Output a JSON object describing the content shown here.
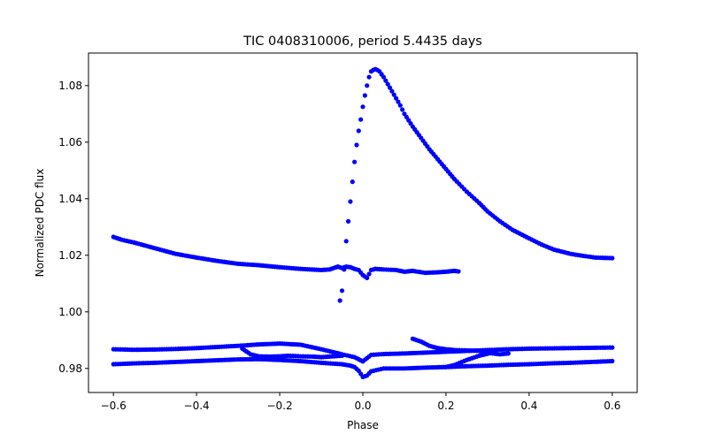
{
  "chart_data": {
    "type": "scatter",
    "title": "TIC 0408310006, period 5.4435 days",
    "xlabel": "Phase",
    "ylabel": "Normalized PDC flux",
    "xlim": [
      -0.66,
      0.66
    ],
    "ylim": [
      0.9715,
      1.0915
    ],
    "xticks": [
      -0.6,
      -0.4,
      -0.2,
      0.0,
      0.2,
      0.4,
      0.6
    ],
    "xtick_labels": [
      "−0.6",
      "−0.4",
      "−0.2",
      "0.0",
      "0.2",
      "0.4",
      "0.6"
    ],
    "yticks": [
      0.98,
      1.0,
      1.02,
      1.04,
      1.06,
      1.08
    ],
    "ytick_labels": [
      "0.98",
      "1.00",
      "1.02",
      "1.04",
      "1.06",
      "1.08"
    ],
    "grid": false,
    "marker_color": "#0000ff",
    "series": [
      {
        "x": [
          -0.6,
          -0.58,
          -0.55,
          -0.5,
          -0.45,
          -0.4,
          -0.35,
          -0.3,
          -0.25,
          -0.2,
          -0.15,
          -0.1,
          -0.08,
          -0.06,
          -0.05,
          -0.04,
          -0.03,
          -0.02,
          -0.01,
          0.0,
          0.01,
          0.02,
          0.03,
          0.05,
          0.08,
          0.1,
          0.12,
          0.15,
          0.18,
          0.2,
          0.22,
          0.23
        ],
        "y": [
          1.0265,
          1.0255,
          1.0245,
          1.0225,
          1.0205,
          1.0192,
          1.018,
          1.017,
          1.0165,
          1.0158,
          1.0152,
          1.0148,
          1.015,
          1.016,
          1.0155,
          1.016,
          1.0158,
          1.0152,
          1.0148,
          1.013,
          1.012,
          1.0148,
          1.0152,
          1.015,
          1.0148,
          1.0142,
          1.0145,
          1.0138,
          1.014,
          1.0142,
          1.0145,
          1.0143
        ]
      },
      {
        "x": [
          -0.055,
          -0.05,
          -0.045,
          -0.04,
          -0.035,
          -0.03,
          -0.025,
          -0.02,
          -0.015,
          -0.01,
          -0.005,
          0.0,
          0.005,
          0.01,
          0.015,
          0.02,
          0.025,
          0.03,
          0.035,
          0.04,
          0.05,
          0.06,
          0.07,
          0.08,
          0.09,
          0.1,
          0.12,
          0.14,
          0.16,
          0.18,
          0.2,
          0.22,
          0.25,
          0.28,
          0.3,
          0.33,
          0.36,
          0.4,
          0.43,
          0.46,
          0.5,
          0.53,
          0.56,
          0.6
        ],
        "y": [
          1.004,
          1.0075,
          1.015,
          1.025,
          1.032,
          1.039,
          1.046,
          1.053,
          1.059,
          1.064,
          1.068,
          1.0725,
          1.0765,
          1.08,
          1.083,
          1.085,
          1.0855,
          1.0858,
          1.0855,
          1.085,
          1.083,
          1.0805,
          1.078,
          1.0755,
          1.073,
          1.07,
          1.0655,
          1.0615,
          1.0575,
          1.054,
          1.0505,
          1.047,
          1.0425,
          1.0385,
          1.0355,
          1.032,
          1.029,
          1.026,
          1.0238,
          1.022,
          1.0205,
          1.0198,
          1.0192,
          1.019
        ]
      },
      {
        "x": [
          -0.6,
          -0.55,
          -0.5,
          -0.45,
          -0.4,
          -0.35,
          -0.3,
          -0.25,
          -0.2,
          -0.15,
          -0.1,
          -0.05,
          -0.03,
          -0.02,
          -0.01,
          0.0,
          0.01,
          0.02,
          0.05,
          0.1,
          0.15,
          0.2,
          0.25,
          0.3,
          0.35,
          0.4,
          0.45,
          0.5,
          0.55,
          0.6
        ],
        "y": [
          0.9815,
          0.9818,
          0.982,
          0.9823,
          0.9826,
          0.9829,
          0.9832,
          0.9833,
          0.983,
          0.9826,
          0.982,
          0.9815,
          0.981,
          0.9805,
          0.9792,
          0.977,
          0.9775,
          0.979,
          0.98,
          0.98,
          0.9803,
          0.9805,
          0.9808,
          0.981,
          0.9813,
          0.9815,
          0.9818,
          0.982,
          0.9823,
          0.9826
        ]
      },
      {
        "x": [
          -0.6,
          -0.55,
          -0.5,
          -0.45,
          -0.4,
          -0.35,
          -0.3,
          -0.25,
          -0.2,
          -0.15,
          -0.1,
          -0.05,
          -0.02,
          0.0,
          0.02,
          0.05,
          0.1,
          0.15,
          0.2,
          0.25,
          0.3,
          0.35,
          0.4,
          0.45,
          0.5,
          0.55,
          0.6
        ],
        "y": [
          0.9868,
          0.9866,
          0.9867,
          0.9869,
          0.9872,
          0.9876,
          0.988,
          0.9885,
          0.9888,
          0.9884,
          0.9868,
          0.985,
          0.984,
          0.9825,
          0.9848,
          0.9851,
          0.9853,
          0.9856,
          0.9859,
          0.9862,
          0.9865,
          0.9868,
          0.987,
          0.9871,
          0.9872,
          0.9873,
          0.9874
        ]
      },
      {
        "x": [
          -0.29,
          -0.27,
          -0.25,
          -0.22,
          -0.2,
          -0.18,
          -0.15,
          -0.12,
          -0.1,
          -0.08,
          -0.05
        ],
        "y": [
          0.987,
          0.985,
          0.9843,
          0.9842,
          0.9843,
          0.9845,
          0.9843,
          0.9842,
          0.984,
          0.9842,
          0.9845
        ]
      },
      {
        "x": [
          0.12,
          0.14,
          0.16,
          0.18,
          0.2,
          0.22,
          0.25,
          0.28,
          0.3,
          0.33,
          0.35
        ],
        "y": [
          0.9905,
          0.9895,
          0.988,
          0.9872,
          0.9868,
          0.9865,
          0.9864,
          0.9862,
          0.9855,
          0.985,
          0.9853
        ]
      },
      {
        "x": [
          0.2,
          0.22,
          0.25,
          0.28,
          0.3
        ],
        "y": [
          0.9805,
          0.9812,
          0.983,
          0.9845,
          0.9852
        ]
      }
    ]
  }
}
